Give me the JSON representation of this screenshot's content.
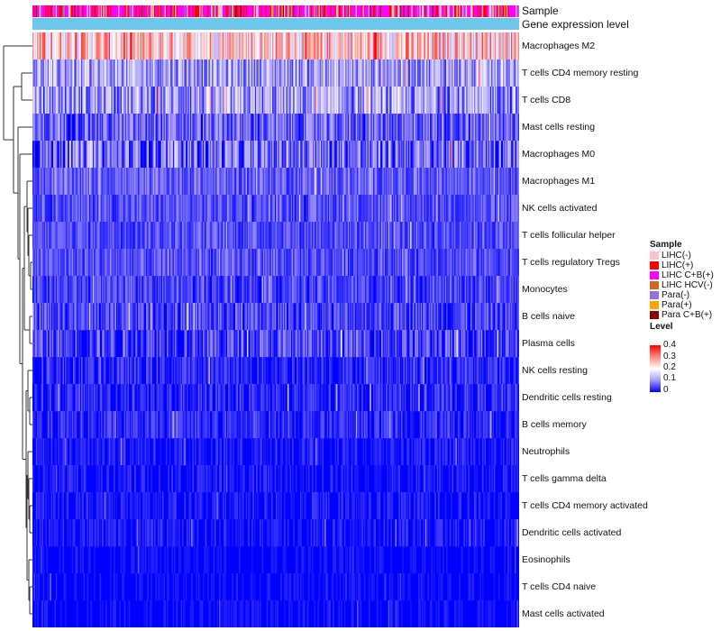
{
  "chart_data": {
    "type": "heatmap",
    "title": "",
    "annotation_tracks": [
      {
        "name": "Sample",
        "label": "Sample"
      },
      {
        "name": "Gene expression level",
        "label": "Gene expression level"
      }
    ],
    "rows": [
      {
        "label": "Macrophages M2",
        "mean_level": 0.24,
        "spread": 0.12
      },
      {
        "label": "T cells CD4 memory resting",
        "mean_level": 0.11,
        "spread": 0.08
      },
      {
        "label": "T cells CD8",
        "mean_level": 0.1,
        "spread": 0.09
      },
      {
        "label": "Mast cells resting",
        "mean_level": 0.06,
        "spread": 0.06
      },
      {
        "label": "Macrophages M0",
        "mean_level": 0.06,
        "spread": 0.09
      },
      {
        "label": "Macrophages M1",
        "mean_level": 0.06,
        "spread": 0.04
      },
      {
        "label": "NK cells activated",
        "mean_level": 0.05,
        "spread": 0.04
      },
      {
        "label": "T cells follicular helper",
        "mean_level": 0.05,
        "spread": 0.04
      },
      {
        "label": "T cells regulatory  Tregs",
        "mean_level": 0.05,
        "spread": 0.04
      },
      {
        "label": "Monocytes",
        "mean_level": 0.04,
        "spread": 0.04
      },
      {
        "label": "B cells naive",
        "mean_level": 0.04,
        "spread": 0.05
      },
      {
        "label": "Plasma cells",
        "mean_level": 0.04,
        "spread": 0.06
      },
      {
        "label": "NK cells resting",
        "mean_level": 0.02,
        "spread": 0.04
      },
      {
        "label": "Dendritic cells resting",
        "mean_level": 0.02,
        "spread": 0.04
      },
      {
        "label": "B cells memory",
        "mean_level": 0.02,
        "spread": 0.04
      },
      {
        "label": "Neutrophils",
        "mean_level": 0.01,
        "spread": 0.03
      },
      {
        "label": "T cells gamma delta",
        "mean_level": 0.01,
        "spread": 0.03
      },
      {
        "label": "T cells CD4 memory activated",
        "mean_level": 0.01,
        "spread": 0.03
      },
      {
        "label": "Dendritic cells activated",
        "mean_level": 0.01,
        "spread": 0.03
      },
      {
        "label": "Eosinophils",
        "mean_level": 0.005,
        "spread": 0.02
      },
      {
        "label": "T cells CD4 naive",
        "mean_level": 0.005,
        "spread": 0.02
      },
      {
        "label": "Mast cells activated",
        "mean_level": 0.005,
        "spread": 0.02
      }
    ],
    "num_samples": 420,
    "color_scale": {
      "min": 0,
      "max": 0.4,
      "stops": [
        {
          "value": 0,
          "color": "#0000ff"
        },
        {
          "value": 0.1,
          "color": "#a79af7"
        },
        {
          "value": 0.2,
          "color": "#ffffff"
        },
        {
          "value": 0.3,
          "color": "#ff8a80"
        },
        {
          "value": 0.4,
          "color": "#ff0000"
        }
      ]
    },
    "gene_expression_level_color": "#6ec6ec",
    "legend": {
      "placement": "right",
      "sample_title": "Sample",
      "sample_groups": [
        {
          "label": "LIHC(-)",
          "color": "#ffc0cb"
        },
        {
          "label": "LIHC(+)",
          "color": "#ff0000"
        },
        {
          "label": "LIHC C+B(+)",
          "color": "#ff00ff"
        },
        {
          "label": "LIHC HCV(-)",
          "color": "#d2691e"
        },
        {
          "label": "Para(-)",
          "color": "#9370db"
        },
        {
          "label": "Para(+)",
          "color": "#ffa500"
        },
        {
          "label": "Para C+B(+)",
          "color": "#8b0000"
        }
      ],
      "level_title": "Level",
      "level_ticks": [
        "0.4",
        "0.3",
        "0.2",
        "0.1",
        "0"
      ]
    },
    "sample_group_weights": [
      0.18,
      0.22,
      0.45,
      0.02,
      0.06,
      0.04,
      0.03
    ],
    "dendrogram": {
      "side": "left",
      "clustered": "rows"
    }
  }
}
